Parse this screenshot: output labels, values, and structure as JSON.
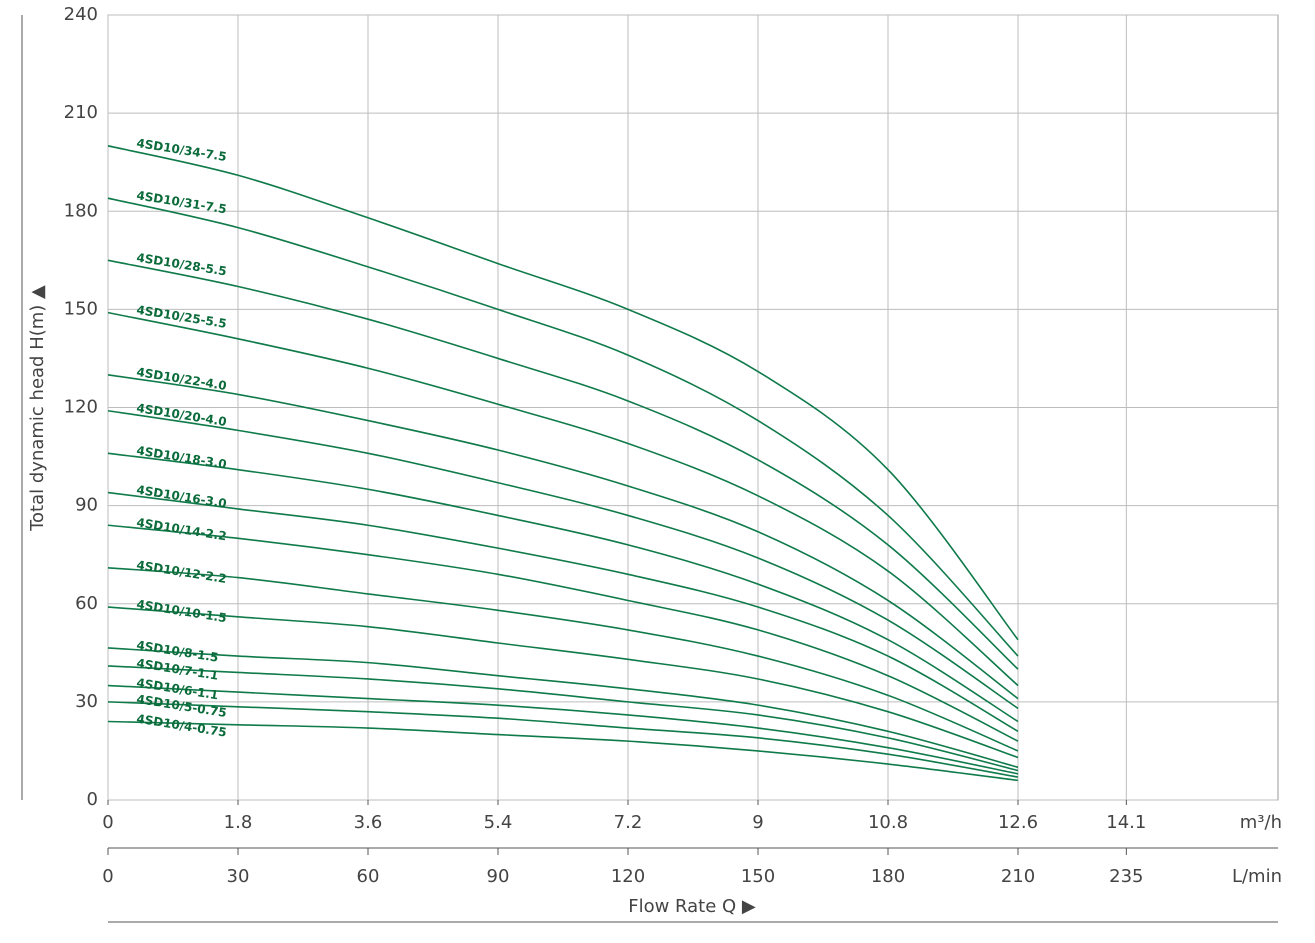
{
  "chart_data": {
    "type": "line",
    "ylabel": "Total dynamic head H(m) ▲",
    "xtitle": "Flow Rate Q ▶",
    "xlabel": "L/min",
    "x2label": "m³/h",
    "x": [
      0,
      30,
      60,
      90,
      120,
      150,
      180,
      210
    ],
    "xlim": [
      0,
      270
    ],
    "xticks": [
      0,
      30,
      60,
      90,
      120,
      150,
      180,
      210,
      235
    ],
    "x2lim": [
      0,
      16.2
    ],
    "x2ticks": [
      0,
      1.8,
      3.6,
      5.4,
      7.2,
      9,
      10.8,
      12.6,
      14.1
    ],
    "ylim": [
      0,
      240
    ],
    "yticks": [
      0,
      30,
      60,
      90,
      120,
      150,
      180,
      210,
      240
    ],
    "grid": true,
    "series": [
      {
        "name": "4SD10/34-7.5",
        "color": "#0f7a4a",
        "values": [
          200,
          191,
          178,
          164,
          150,
          131,
          101,
          49
        ]
      },
      {
        "name": "4SD10/31-7.5",
        "color": "#0f7a4a",
        "values": [
          184,
          175,
          163,
          150,
          136,
          116,
          87,
          44
        ]
      },
      {
        "name": "4SD10/28-5.5",
        "color": "#0f7a4a",
        "values": [
          165,
          157,
          147,
          135,
          122,
          104,
          78,
          40
        ]
      },
      {
        "name": "4SD10/25-5.5",
        "color": "#0f7a4a",
        "values": [
          149,
          141,
          132,
          121,
          109,
          93,
          70,
          35
        ]
      },
      {
        "name": "4SD10/22-4.0",
        "color": "#0f7a4a",
        "values": [
          130,
          124,
          116,
          107,
          96,
          82,
          61,
          31
        ]
      },
      {
        "name": "4SD10/20-4.0",
        "color": "#0f7a4a",
        "values": [
          119,
          113,
          106,
          97,
          87,
          74,
          55,
          28
        ]
      },
      {
        "name": "4SD10/18-3.0",
        "color": "#0f7a4a",
        "values": [
          106,
          101,
          95,
          87,
          78,
          66,
          49,
          24
        ]
      },
      {
        "name": "4SD10/16-3.0",
        "color": "#0f7a4a",
        "values": [
          94,
          89,
          84,
          77,
          69,
          59,
          44,
          21
        ]
      },
      {
        "name": "4SD10/14-2.2",
        "color": "#0f7a4a",
        "values": [
          84,
          80,
          75,
          69,
          61,
          52,
          38,
          18
        ]
      },
      {
        "name": "4SD10/12-2.2",
        "color": "#0f7a4a",
        "values": [
          71,
          68,
          63,
          58,
          52,
          44,
          32,
          15
        ]
      },
      {
        "name": "4SD10/10-1.5",
        "color": "#0f7a4a",
        "values": [
          59,
          56,
          53,
          48,
          43,
          37,
          27,
          13
        ]
      },
      {
        "name": "4SD10/8-1.5",
        "color": "#0f7a4a",
        "values": [
          46.5,
          44,
          42,
          38,
          34,
          29,
          21,
          10
        ]
      },
      {
        "name": "4SD10/7-1.1",
        "color": "#0f7a4a",
        "values": [
          41,
          39,
          37,
          34,
          30,
          26,
          19,
          9
        ]
      },
      {
        "name": "4SD10/6-1.1",
        "color": "#0f7a4a",
        "values": [
          35,
          33,
          31,
          29,
          26,
          22,
          16,
          8
        ]
      },
      {
        "name": "4SD10/5-0.75",
        "color": "#0f7a4a",
        "values": [
          30,
          28.5,
          27,
          25,
          22,
          19,
          14,
          7
        ]
      },
      {
        "name": "4SD10/4-0.75",
        "color": "#0f7a4a",
        "values": [
          24,
          23,
          22,
          20,
          18,
          15,
          11,
          6
        ]
      }
    ]
  }
}
